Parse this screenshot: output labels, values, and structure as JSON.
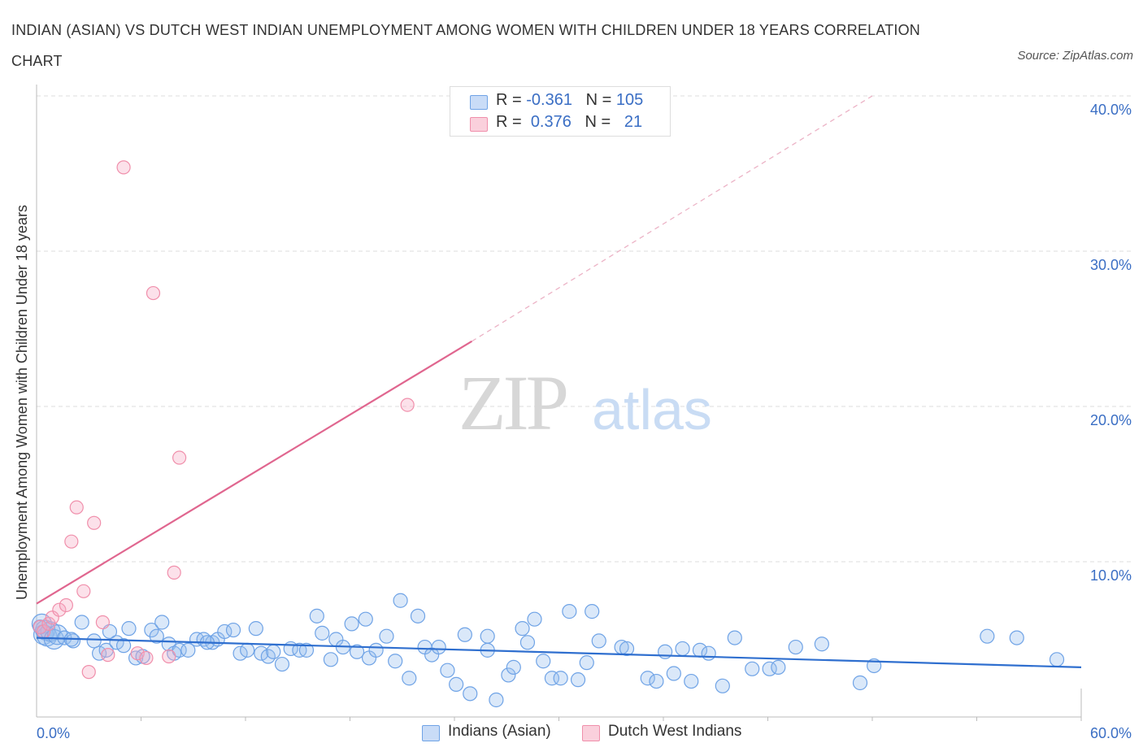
{
  "title": "INDIAN (ASIAN) VS DUTCH WEST INDIAN UNEMPLOYMENT AMONG WOMEN WITH CHILDREN UNDER 18 YEARS CORRELATION CHART",
  "source": "Source: ZipAtlas.com",
  "watermark": {
    "zip": "ZIP",
    "atlas": "atlas"
  },
  "stats_legend": {
    "rows": [
      {
        "r_label": "R =",
        "r_value": "-0.361",
        "n_label": "N =",
        "n_value": "105",
        "color": "#a9c6f0"
      },
      {
        "r_label": "R =",
        "r_value": "0.376",
        "n_label": "N =",
        "n_value": "21",
        "color": "#f5b8cb"
      }
    ]
  },
  "chart_data": {
    "type": "scatter",
    "title": "INDIAN (ASIAN) VS DUTCH WEST INDIAN UNEMPLOYMENT AMONG WOMEN WITH CHILDREN UNDER 18 YEARS CORRELATION CHART",
    "xlabel": "",
    "ylabel": "Unemployment Among Women with Children Under 18 years",
    "xlim": [
      0,
      60
    ],
    "ylim": [
      0,
      40
    ],
    "x_tick_labels": [
      "0.0%",
      "60.0%"
    ],
    "y_ticks": [
      10,
      20,
      30,
      40
    ],
    "y_tick_labels": [
      "10.0%",
      "20.0%",
      "30.0%",
      "40.0%"
    ],
    "grid": true,
    "legend_position": "bottom",
    "series": [
      {
        "name": "Indians (Asian)",
        "color": "#6fa3e6",
        "trend": {
          "x": [
            0,
            60
          ],
          "y": [
            5.1,
            3.2
          ]
        },
        "points": [
          [
            0.3,
            6.0
          ],
          [
            0.4,
            5.3
          ],
          [
            0.5,
            5.6
          ],
          [
            0.6,
            5.2
          ],
          [
            0.8,
            5.5
          ],
          [
            1.0,
            5.0
          ],
          [
            1.2,
            5.3
          ],
          [
            1.6,
            5.1
          ],
          [
            2.1,
            4.9
          ],
          [
            2.6,
            6.1
          ],
          [
            3.3,
            4.9
          ],
          [
            3.6,
            4.1
          ],
          [
            4.0,
            4.3
          ],
          [
            4.2,
            5.5
          ],
          [
            4.6,
            4.8
          ],
          [
            5.0,
            4.6
          ],
          [
            5.3,
            5.7
          ],
          [
            5.7,
            3.8
          ],
          [
            6.1,
            3.9
          ],
          [
            6.6,
            5.6
          ],
          [
            6.9,
            5.2
          ],
          [
            7.2,
            6.1
          ],
          [
            7.6,
            4.7
          ],
          [
            7.9,
            4.1
          ],
          [
            8.2,
            4.3
          ],
          [
            8.7,
            4.3
          ],
          [
            9.2,
            5.0
          ],
          [
            9.6,
            5.0
          ],
          [
            10.1,
            4.8
          ],
          [
            10.4,
            5.0
          ],
          [
            10.8,
            5.5
          ],
          [
            11.3,
            5.6
          ],
          [
            11.7,
            4.1
          ],
          [
            12.1,
            4.3
          ],
          [
            12.6,
            5.7
          ],
          [
            12.9,
            4.1
          ],
          [
            13.3,
            3.9
          ],
          [
            13.6,
            4.2
          ],
          [
            14.1,
            3.4
          ],
          [
            14.6,
            4.4
          ],
          [
            15.1,
            4.3
          ],
          [
            15.5,
            4.3
          ],
          [
            16.1,
            6.5
          ],
          [
            16.4,
            5.4
          ],
          [
            16.9,
            3.7
          ],
          [
            17.2,
            5.0
          ],
          [
            17.6,
            4.5
          ],
          [
            18.1,
            6.0
          ],
          [
            18.4,
            4.2
          ],
          [
            18.9,
            6.3
          ],
          [
            19.1,
            3.8
          ],
          [
            19.5,
            4.3
          ],
          [
            20.1,
            5.2
          ],
          [
            20.6,
            3.6
          ],
          [
            20.9,
            7.5
          ],
          [
            21.4,
            2.5
          ],
          [
            21.9,
            6.5
          ],
          [
            22.3,
            4.5
          ],
          [
            22.7,
            4.0
          ],
          [
            23.1,
            4.5
          ],
          [
            23.6,
            3.0
          ],
          [
            24.1,
            2.1
          ],
          [
            24.6,
            5.3
          ],
          [
            24.9,
            1.5
          ],
          [
            25.9,
            4.3
          ],
          [
            25.9,
            5.2
          ],
          [
            26.4,
            1.1
          ],
          [
            27.1,
            2.7
          ],
          [
            27.4,
            3.2
          ],
          [
            27.9,
            5.7
          ],
          [
            28.2,
            4.8
          ],
          [
            28.6,
            6.3
          ],
          [
            29.1,
            3.6
          ],
          [
            29.6,
            2.5
          ],
          [
            30.1,
            2.5
          ],
          [
            30.6,
            6.8
          ],
          [
            31.1,
            2.4
          ],
          [
            31.6,
            3.5
          ],
          [
            31.9,
            6.8
          ],
          [
            32.3,
            4.9
          ],
          [
            33.6,
            4.5
          ],
          [
            33.9,
            4.4
          ],
          [
            35.1,
            2.5
          ],
          [
            35.6,
            2.3
          ],
          [
            36.1,
            4.2
          ],
          [
            36.6,
            2.8
          ],
          [
            37.1,
            4.4
          ],
          [
            37.6,
            2.3
          ],
          [
            38.1,
            4.3
          ],
          [
            38.6,
            4.1
          ],
          [
            39.4,
            2.0
          ],
          [
            40.1,
            5.1
          ],
          [
            41.1,
            3.1
          ],
          [
            42.1,
            3.1
          ],
          [
            42.6,
            3.2
          ],
          [
            43.6,
            4.5
          ],
          [
            45.1,
            4.7
          ],
          [
            47.3,
            2.2
          ],
          [
            48.1,
            3.3
          ],
          [
            54.6,
            5.2
          ],
          [
            56.3,
            5.1
          ],
          [
            58.6,
            3.7
          ],
          [
            0.2,
            5.8
          ],
          [
            2.0,
            5.0
          ],
          [
            9.8,
            4.8
          ]
        ]
      },
      {
        "name": "Dutch West Indians",
        "color": "#f08fab",
        "trend": {
          "x": [
            0,
            25
          ],
          "y": [
            7.3,
            24.2
          ]
        },
        "trend_extension": {
          "x": [
            25,
            48
          ],
          "y": [
            24.2,
            40.0
          ]
        },
        "points": [
          [
            0.2,
            5.8
          ],
          [
            0.4,
            5.5
          ],
          [
            0.7,
            6.0
          ],
          [
            0.9,
            6.4
          ],
          [
            1.3,
            6.9
          ],
          [
            1.7,
            7.2
          ],
          [
            2.0,
            11.3
          ],
          [
            2.3,
            13.5
          ],
          [
            2.7,
            8.1
          ],
          [
            3.0,
            2.9
          ],
          [
            3.3,
            12.5
          ],
          [
            3.8,
            6.1
          ],
          [
            4.1,
            4.0
          ],
          [
            5.0,
            35.4
          ],
          [
            5.8,
            4.1
          ],
          [
            6.3,
            3.8
          ],
          [
            6.7,
            27.3
          ],
          [
            7.6,
            3.9
          ],
          [
            7.9,
            9.3
          ],
          [
            8.2,
            16.7
          ],
          [
            21.3,
            20.1
          ]
        ]
      }
    ]
  }
}
